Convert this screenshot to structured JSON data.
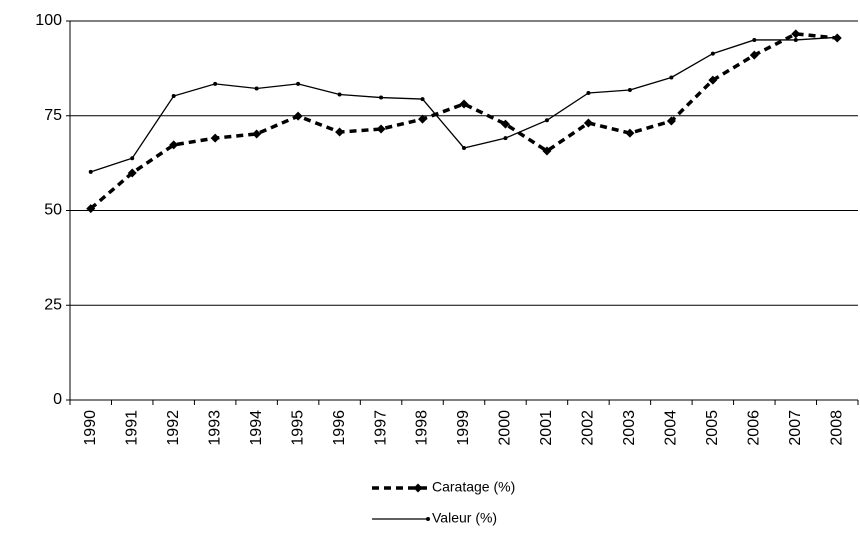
{
  "chart_data": {
    "type": "line",
    "categories": [
      "1990",
      "1991",
      "1992",
      "1993",
      "1994",
      "1995",
      "1996",
      "1997",
      "1998",
      "1999",
      "2000",
      "2001",
      "2002",
      "2003",
      "2004",
      "2005",
      "2006",
      "2007",
      "2008"
    ],
    "series": [
      {
        "name": "Caratage (%)",
        "color": "#000000",
        "line_style": "dashed",
        "marker": "diamond",
        "values": [
          50.5,
          59.9,
          67.3,
          69.1,
          70.2,
          74.9,
          70.7,
          71.5,
          74.1,
          78.1,
          72.8,
          65.7,
          73.1,
          70.4,
          73.6,
          84.4,
          91,
          96.6,
          95.5
        ]
      },
      {
        "name": "Valeur (%)",
        "color": "#000000",
        "line_style": "solid",
        "marker": "dot",
        "values": [
          60.2,
          63.8,
          80.2,
          83.4,
          82.2,
          83.4,
          80.6,
          79.8,
          79.4,
          66.5,
          69.1,
          73.8,
          81,
          81.8,
          85.1,
          91.4,
          95,
          95,
          95.7
        ]
      }
    ],
    "ylim": [
      0,
      100
    ],
    "yticks": [
      0,
      25,
      50,
      75,
      100
    ],
    "grid": true,
    "legend": "bottom"
  }
}
